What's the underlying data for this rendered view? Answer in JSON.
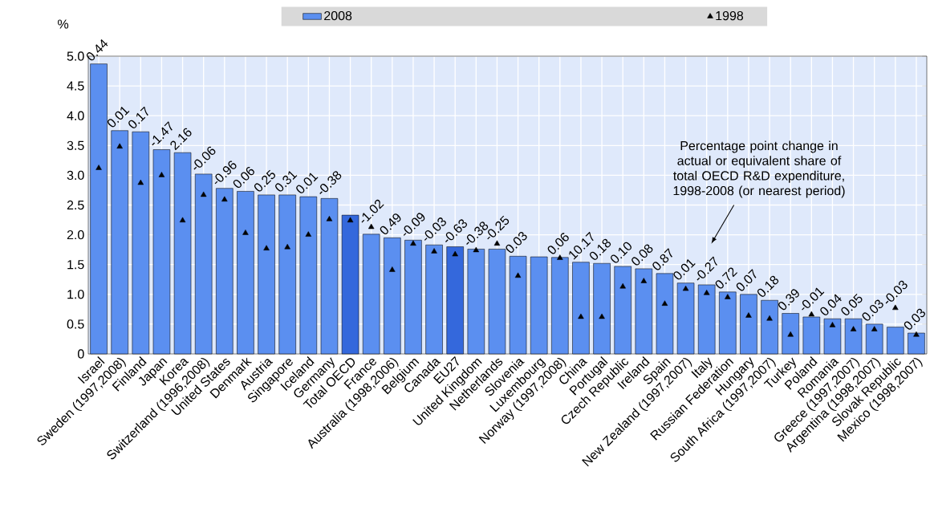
{
  "chart_data": {
    "type": "bar",
    "ylabel": "%",
    "categories": [
      "Israel",
      "Sweden (1997,2008)",
      "Finland",
      "Japan",
      "Korea",
      "Switzerland (1996,2008)",
      "United States",
      "Denmark",
      "Austria",
      "Singapore",
      "Iceland",
      "Germany",
      "Total OECD",
      "France",
      "Australia (1998,2006)",
      "Belgium",
      "Canada",
      "EU27",
      "United Kingdom",
      "Netherlands",
      "Slovenia",
      "Luxembourg",
      "Norway (1997,2008)",
      "China",
      "Portugal",
      "Czech Republic",
      "Ireland",
      "Spain",
      "New Zealand (1997,2007)",
      "Italy",
      "Russian Federation",
      "Hungary",
      "South Africa (1997,2007)",
      "Turkey",
      "Poland",
      "Romania",
      "Greece (1997,2007)",
      "Argentina (1998,2007)",
      "Slovak Republic",
      "Mexico (1998,2007)"
    ],
    "series": [
      {
        "name": "2008",
        "type": "bar",
        "color": "#5b8ff0",
        "colors": [
          "#5b8ff0",
          "#5b8ff0",
          "#5b8ff0",
          "#5b8ff0",
          "#5b8ff0",
          "#5b8ff0",
          "#5b8ff0",
          "#5b8ff0",
          "#5b8ff0",
          "#5b8ff0",
          "#5b8ff0",
          "#5b8ff0",
          "#3468dc",
          "#5b8ff0",
          "#5b8ff0",
          "#5b8ff0",
          "#5b8ff0",
          "#3468dc",
          "#5b8ff0",
          "#5b8ff0",
          "#5b8ff0",
          "#5b8ff0",
          "#5b8ff0",
          "#5b8ff0",
          "#5b8ff0",
          "#5b8ff0",
          "#5b8ff0",
          "#5b8ff0",
          "#5b8ff0",
          "#5b8ff0",
          "#5b8ff0",
          "#5b8ff0",
          "#5b8ff0",
          "#5b8ff0",
          "#5b8ff0",
          "#5b8ff0",
          "#5b8ff0",
          "#5b8ff0",
          "#5b8ff0",
          "#5b8ff0"
        ],
        "values": [
          4.87,
          3.75,
          3.73,
          3.43,
          3.38,
          3.02,
          2.78,
          2.73,
          2.67,
          2.67,
          2.64,
          2.61,
          2.33,
          2.01,
          1.95,
          1.91,
          1.83,
          1.8,
          1.76,
          1.76,
          1.64,
          1.63,
          1.62,
          1.54,
          1.52,
          1.47,
          1.43,
          1.35,
          1.19,
          1.16,
          1.04,
          1.0,
          0.9,
          0.68,
          0.62,
          0.59,
          0.59,
          0.5,
          0.45,
          0.35
        ]
      },
      {
        "name": "1998",
        "type": "scatter",
        "color": "#000000",
        "values": [
          3.12,
          3.48,
          2.87,
          3.0,
          2.24,
          2.67,
          2.59,
          2.03,
          1.77,
          1.79,
          2.0,
          2.26,
          2.24,
          2.13,
          1.41,
          1.85,
          1.72,
          1.67,
          1.74,
          1.85,
          1.31,
          null,
          1.61,
          0.62,
          0.62,
          1.13,
          1.22,
          0.84,
          1.09,
          1.02,
          0.95,
          0.64,
          0.59,
          0.32,
          0.66,
          0.48,
          0.41,
          0.41,
          0.77,
          0.32
        ]
      }
    ],
    "ylim": [
      0,
      5
    ],
    "yticks": [
      0,
      0.5,
      {
        "value": 1,
        "label": "1.0"
      },
      1.5,
      {
        "value": 2,
        "label": "2.0"
      },
      2.5,
      {
        "value": 3,
        "label": "3.0"
      },
      3.5,
      {
        "value": 4,
        "label": "4.0"
      },
      4.5,
      {
        "value": 5,
        "label": "5.0"
      }
    ],
    "grid": true,
    "legend": "top",
    "marker": "triangle",
    "annotations": [
      "Percentage point change in actual or equivalent share of total OECD R&D expenditure, 1998-2008 (or nearest period)",
      {
        "text": "0.44",
        "x": "Israel",
        "y": 4.87
      },
      {
        "text": "0.01",
        "x": "Sweden (1997,2008)",
        "y": 3.75
      },
      {
        "text": "0.17",
        "x": "Finland",
        "y": 3.73
      },
      {
        "text": "-1.47",
        "x": "Japan",
        "y": 3.43
      },
      {
        "text": "2.16",
        "x": "Korea",
        "y": 3.38
      },
      {
        "text": "-0.06",
        "x": "Switzerland (1996,2008)",
        "y": 3.02
      },
      {
        "text": "-0.96",
        "x": "United States",
        "y": 2.78
      },
      {
        "text": "0.06",
        "x": "Denmark",
        "y": 2.73
      },
      {
        "text": "0.25",
        "x": "Austria",
        "y": 2.67
      },
      {
        "text": "0.31",
        "x": "Singapore",
        "y": 2.67
      },
      {
        "text": "0.01",
        "x": "Iceland",
        "y": 2.64
      },
      {
        "text": "-0.38",
        "x": "Germany",
        "y": 2.61
      },
      {
        "text": "-1.02",
        "x": "France",
        "y": 2.13
      },
      {
        "text": "0.49",
        "x": "Australia (1998,2006)",
        "y": 1.95
      },
      {
        "text": "-0.09",
        "x": "Belgium",
        "y": 1.91
      },
      {
        "text": "-0.03",
        "x": "Canada",
        "y": 1.83
      },
      {
        "text": "-0.63",
        "x": "EU27",
        "y": 1.8
      },
      {
        "text": "-0.38",
        "x": "United Kingdom",
        "y": 1.76
      },
      {
        "text": "-0.25",
        "x": "Netherlands",
        "y": 1.85
      },
      {
        "text": "0.03",
        "x": "Slovenia",
        "y": 1.64
      },
      {
        "text": "0.06",
        "x": "Norway (1997,2008)",
        "y": 1.62
      },
      {
        "text": "10.17",
        "x": "China",
        "y": 1.54
      },
      {
        "text": "0.18",
        "x": "Portugal",
        "y": 1.52
      },
      {
        "text": "0.10",
        "x": "Czech Republic",
        "y": 1.47
      },
      {
        "text": "0.08",
        "x": "Ireland",
        "y": 1.43
      },
      {
        "text": "0.87",
        "x": "Spain",
        "y": 1.35
      },
      {
        "text": "0.01",
        "x": "New Zealand (1997,2007)",
        "y": 1.19
      },
      {
        "text": "-0.27",
        "x": "Italy",
        "y": 1.16
      },
      {
        "text": "0.72",
        "x": "Russian Federation",
        "y": 1.04
      },
      {
        "text": "0.07",
        "x": "Hungary",
        "y": 1.0
      },
      {
        "text": "0.18",
        "x": "South Africa (1997,2007)",
        "y": 0.9
      },
      {
        "text": "0.39",
        "x": "Turkey",
        "y": 0.68
      },
      {
        "text": "-0.01",
        "x": "Poland",
        "y": 0.66
      },
      {
        "text": "0.04",
        "x": "Romania",
        "y": 0.59
      },
      {
        "text": "0.05",
        "x": "Greece (1997,2007)",
        "y": 0.59
      },
      {
        "text": "0.03",
        "x": "Argentina (1998,2007)",
        "y": 0.5
      },
      {
        "text": "-0.03",
        "x": "Slovak Republic",
        "y": 0.77
      },
      {
        "text": "0.03",
        "x": "Mexico (1998,2007)",
        "y": 0.35
      }
    ]
  }
}
